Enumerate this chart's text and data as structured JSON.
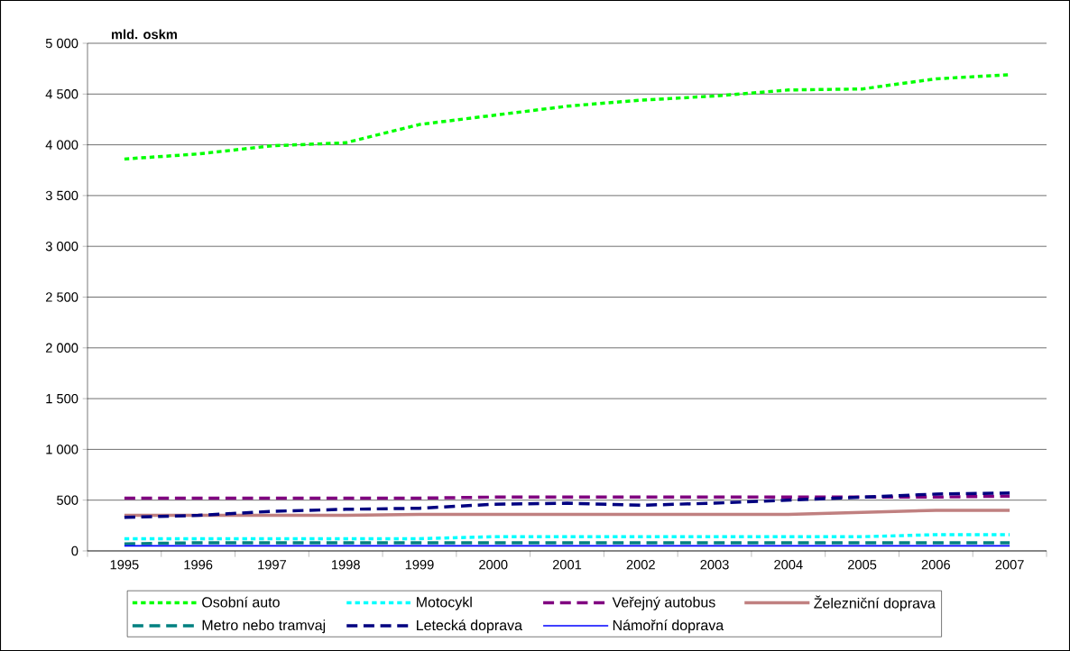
{
  "chart_data": {
    "type": "line",
    "ylabel": "mld. oskm",
    "categories": [
      "1995",
      "1996",
      "1997",
      "1998",
      "1999",
      "2000",
      "2001",
      "2002",
      "2003",
      "2004",
      "2005",
      "2006",
      "2007"
    ],
    "ylim": [
      0,
      5000
    ],
    "yticks": [
      {
        "value": 0,
        "label": "0"
      },
      {
        "value": 500,
        "label": "500"
      },
      {
        "value": 1000,
        "label": "1 000"
      },
      {
        "value": 1500,
        "label": "1 500"
      },
      {
        "value": 2000,
        "label": "2 000"
      },
      {
        "value": 2500,
        "label": "2 500"
      },
      {
        "value": 3000,
        "label": "3 000"
      },
      {
        "value": 3500,
        "label": "3 500"
      },
      {
        "value": 4000,
        "label": "4 000"
      },
      {
        "value": 4500,
        "label": "4 500"
      },
      {
        "value": 5000,
        "label": "5 000"
      }
    ],
    "grid": "y",
    "legend": "bottom",
    "marker": "none",
    "series": [
      {
        "name": "Osobní auto",
        "color": "#00ff00",
        "line_style": "dotted",
        "values": [
          3860,
          3910,
          3990,
          4020,
          4200,
          4290,
          4380,
          4440,
          4480,
          4540,
          4550,
          4650,
          4690
        ]
      },
      {
        "name": "Motocykl",
        "color": "#00ffff",
        "line_style": "dotted",
        "values": [
          120,
          120,
          120,
          120,
          120,
          140,
          140,
          140,
          140,
          140,
          140,
          160,
          160
        ]
      },
      {
        "name": "Veřejný autobus",
        "color": "#800080",
        "line_style": "dashed",
        "values": [
          520,
          520,
          520,
          520,
          520,
          530,
          530,
          530,
          530,
          530,
          530,
          530,
          540
        ]
      },
      {
        "name": "Železniční doprava",
        "color": "#c08080",
        "line_style": "solid",
        "values": [
          350,
          350,
          350,
          350,
          360,
          360,
          360,
          360,
          360,
          360,
          380,
          400,
          400
        ]
      },
      {
        "name": "Metro nebo tramvaj",
        "color": "#008080",
        "line_style": "dashed",
        "values": [
          70,
          80,
          80,
          80,
          80,
          80,
          80,
          80,
          80,
          80,
          80,
          80,
          80
        ]
      },
      {
        "name": "Letecká doprava",
        "color": "#000080",
        "line_style": "dashed",
        "values": [
          330,
          350,
          390,
          410,
          420,
          460,
          470,
          450,
          470,
          500,
          530,
          560,
          570
        ]
      },
      {
        "name": "Námořní doprava",
        "color": "#0000ff",
        "line_style": "solid",
        "values": [
          50,
          50,
          50,
          50,
          50,
          50,
          50,
          50,
          50,
          50,
          50,
          50,
          50
        ]
      }
    ]
  }
}
